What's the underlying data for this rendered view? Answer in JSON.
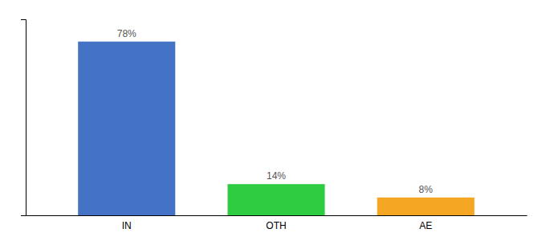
{
  "chart_data": {
    "type": "bar",
    "categories": [
      "IN",
      "OTH",
      "AE"
    ],
    "values": [
      78,
      14,
      8
    ],
    "value_labels": [
      "78%",
      "14%",
      "8%"
    ],
    "colors": [
      "#4472c4",
      "#2ecc40",
      "#f5a623"
    ],
    "ylim": [
      0,
      88
    ],
    "data_labels": true,
    "tick_labels": "x"
  }
}
